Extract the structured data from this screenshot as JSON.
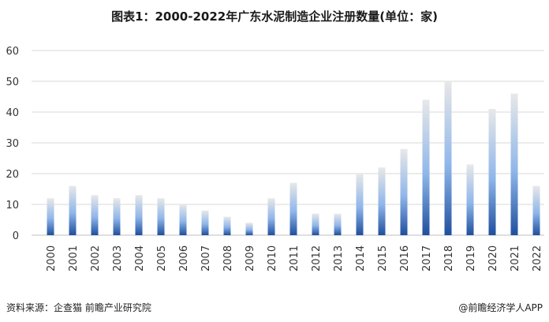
{
  "title": "图表1：2000-2022年广东水泥制造企业注册数量(单位：家)",
  "source": "资料来源：企查猫 前瞻产业研究院",
  "brand": "@前瞻经济学人APP",
  "colors": {
    "bar_bottom": "#1f4f9e",
    "bar_mid": "#8fb6ea",
    "bar_top": "#e8e8e8",
    "grid": "#d9d9d9"
  },
  "chart_data": {
    "type": "bar",
    "title": "图表1：2000-2022年广东水泥制造企业注册数量(单位：家)",
    "categories": [
      "2000",
      "2001",
      "2002",
      "2003",
      "2004",
      "2005",
      "2006",
      "2007",
      "2008",
      "2009",
      "2010",
      "2011",
      "2012",
      "2013",
      "2014",
      "2015",
      "2016",
      "2017",
      "2018",
      "2019",
      "2020",
      "2021",
      "2022"
    ],
    "values": [
      12,
      16,
      13,
      12,
      13,
      12,
      10,
      8,
      6,
      4,
      12,
      17,
      7,
      7,
      20,
      22,
      28,
      44,
      50,
      23,
      41,
      46,
      16
    ],
    "ylim": [
      0,
      60
    ],
    "yticks": [
      0,
      10,
      20,
      30,
      40,
      50,
      60
    ],
    "grid": true
  }
}
